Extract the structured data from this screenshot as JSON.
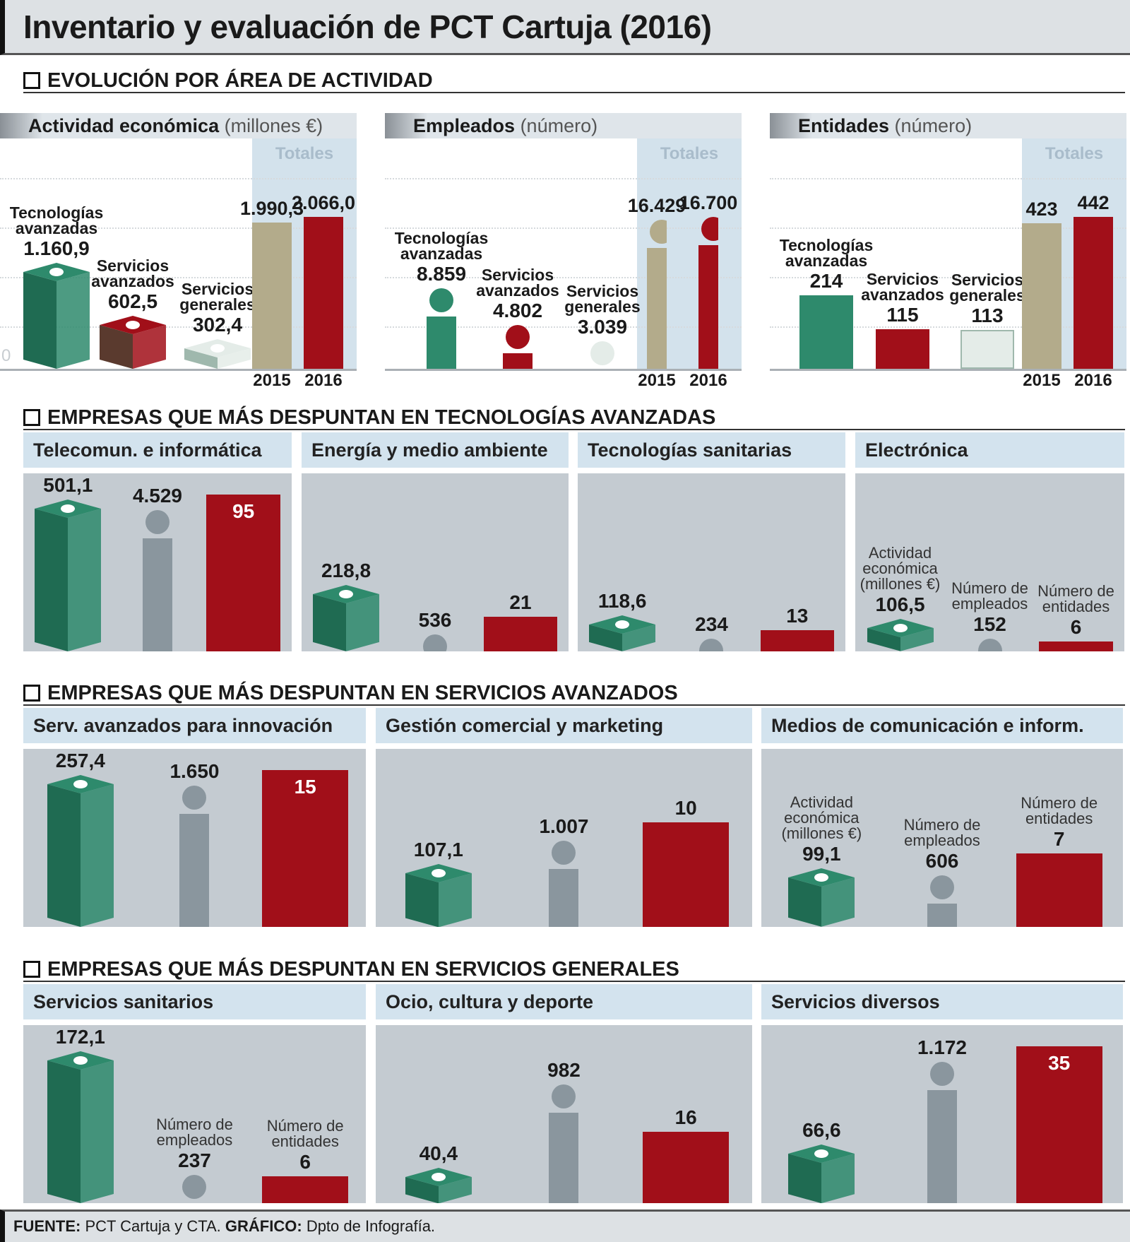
{
  "title": "Inventario y evaluación de PCT Cartuja (2016)",
  "sections": [
    "EVOLUCIÓN POR ÁREA DE ACTIVIDAD",
    "EMPRESAS QUE MÁS DESPUNTAN EN TECNOLOGÍAS AVANZADAS",
    "EMPRESAS QUE MÁS DESPUNTAN EN SERVICIOS AVANZADOS",
    "EMPRESAS QUE MÁS DESPUNTAN EN SERVICIOS GENERALES"
  ],
  "colors": {
    "tec_avanzadas": "#2e8a6c",
    "serv_avanzados": "#a10f19",
    "serv_generales": "#e4ece8",
    "y2015": "#b3ab8b",
    "y2016": "#a10f19",
    "panel": "#c4cbd1",
    "header": "#d3e3ee"
  },
  "chart_data": [
    {
      "type": "bar",
      "title": "Actividad económica",
      "unit": "(millones €)",
      "totals_label": "Totales",
      "zero_label": "0",
      "categories": [
        "Tecnologías avanzadas",
        "Servicios avanzados",
        "Servicios generales"
      ],
      "values": [
        1160.9,
        602.5,
        302.4
      ],
      "value_labels": [
        "1.160,9",
        "602,5",
        "302,4"
      ],
      "icon": "money-stack-icon",
      "totals": {
        "years": [
          "2015",
          "2016"
        ],
        "values": [
          1990.3,
          2066.0
        ],
        "value_labels": [
          "1.990,3",
          "2.066,0"
        ]
      }
    },
    {
      "type": "bar",
      "title": "Empleados",
      "unit": "(número)",
      "totals_label": "Totales",
      "categories": [
        "Tecnologías avanzadas",
        "Servicios avanzados",
        "Servicios generales"
      ],
      "values": [
        8859,
        4802,
        3039
      ],
      "value_labels": [
        "8.859",
        "4.802",
        "3.039"
      ],
      "icon": "person-icon",
      "totals": {
        "years": [
          "2015",
          "2016"
        ],
        "values": [
          16429,
          16700
        ],
        "value_labels": [
          "16.429",
          "16.700"
        ]
      }
    },
    {
      "type": "bar",
      "title": "Entidades",
      "unit": "(número)",
      "totals_label": "Totales",
      "categories": [
        "Tecnologías avanzadas",
        "Servicios avanzados",
        "Servicios generales"
      ],
      "values": [
        214,
        115,
        113
      ],
      "value_labels": [
        "214",
        "115",
        "113"
      ],
      "icon": "bar",
      "totals": {
        "years": [
          "2015",
          "2016"
        ],
        "values": [
          423,
          442
        ],
        "value_labels": [
          "423",
          "442"
        ]
      }
    }
  ],
  "metric_labels": {
    "economic": "Actividad económica (millones €)",
    "employees": "Número de empleados",
    "entities": "Número de entidades"
  },
  "company_groups": [
    {
      "panels": [
        {
          "title": "Telecomun. e informática",
          "economic": 501.1,
          "economic_label": "501,1",
          "employees": 4529,
          "employees_label": "4.529",
          "entities": 95,
          "entities_label": "95"
        },
        {
          "title": "Energía y medio ambiente",
          "economic": 218.8,
          "economic_label": "218,8",
          "employees": 536,
          "employees_label": "536",
          "entities": 21,
          "entities_label": "21"
        },
        {
          "title": "Tecnologías sanitarias",
          "economic": 118.6,
          "economic_label": "118,6",
          "employees": 234,
          "employees_label": "234",
          "entities": 13,
          "entities_label": "13"
        },
        {
          "title": "Electrónica",
          "economic": 106.5,
          "economic_label": "106,5",
          "employees": 152,
          "employees_label": "152",
          "entities": 6,
          "entities_label": "6",
          "show_metric_labels": true
        }
      ]
    },
    {
      "panels": [
        {
          "title": "Serv. avanzados para innovación",
          "economic": 257.4,
          "economic_label": "257,4",
          "employees": 1650,
          "employees_label": "1.650",
          "entities": 15,
          "entities_label": "15"
        },
        {
          "title": "Gestión comercial y marketing",
          "economic": 107.1,
          "economic_label": "107,1",
          "employees": 1007,
          "employees_label": "1.007",
          "entities": 10,
          "entities_label": "10"
        },
        {
          "title": "Medios de comunicación e inform.",
          "economic": 99.1,
          "economic_label": "99,1",
          "employees": 606,
          "employees_label": "606",
          "entities": 7,
          "entities_label": "7",
          "show_metric_labels": true
        }
      ]
    },
    {
      "panels": [
        {
          "title": "Servicios sanitarios",
          "economic": 172.1,
          "economic_label": "172,1",
          "employees": 237,
          "employees_label": "237",
          "entities": 6,
          "entities_label": "6",
          "show_metric_labels": true
        },
        {
          "title": "Ocio, cultura y deporte",
          "economic": 40.4,
          "economic_label": "40,4",
          "employees": 982,
          "employees_label": "982",
          "entities": 16,
          "entities_label": "16"
        },
        {
          "title": "Servicios diversos",
          "economic": 66.6,
          "economic_label": "66,6",
          "employees": 1172,
          "employees_label": "1.172",
          "entities": 35,
          "entities_label": "35"
        }
      ]
    }
  ],
  "footer": {
    "source_label": "FUENTE:",
    "source": "PCT Cartuja y CTA.",
    "graphic_label": "GRÁFICO:",
    "graphic": "Dpto de Infografía."
  }
}
